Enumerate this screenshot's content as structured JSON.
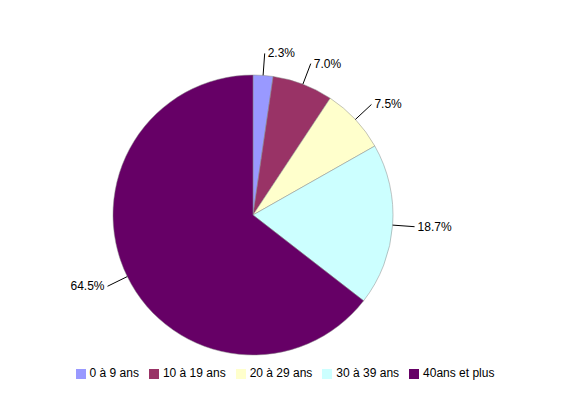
{
  "chart_data": {
    "type": "pie",
    "categories": [
      "0 à 9 ans",
      "10 à 19 ans",
      "20 à 29 ans",
      "30 à 39 ans",
      "40ans et plus"
    ],
    "values": [
      2.3,
      7.0,
      7.5,
      18.7,
      64.5
    ],
    "value_labels": [
      "2.3%",
      "7.0%",
      "7.5%",
      "18.7%",
      "64.5%"
    ],
    "colors": [
      "#9999ff",
      "#993366",
      "#ffffcc",
      "#ccffff",
      "#660066"
    ],
    "data_labels": true,
    "legend": "bottom"
  }
}
